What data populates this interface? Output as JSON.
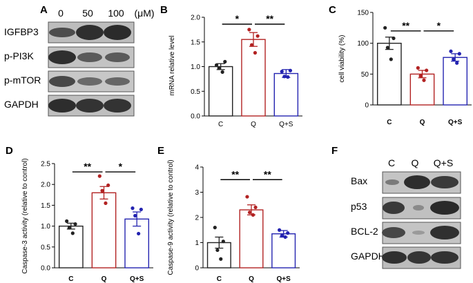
{
  "panel_labels": {
    "a": "A",
    "b": "B",
    "c": "C",
    "d": "D",
    "e": "E",
    "f": "F"
  },
  "western_a": {
    "columns": [
      "0",
      "50",
      "100"
    ],
    "unit": "(μM)",
    "rows": [
      "IGFBP3",
      "p-PI3K",
      "p-mTOR",
      "GAPDH"
    ]
  },
  "western_f": {
    "columns": [
      "C",
      "Q",
      "Q+S"
    ],
    "rows": [
      "Bax",
      "p53",
      "BCL-2",
      "GAPDH"
    ]
  },
  "colors": {
    "C": "#222222",
    "Q": "#b22222",
    "Q+S": "#2323b0"
  },
  "chart_data": [
    {
      "id": "B",
      "type": "bar",
      "categories": [
        "C",
        "Q",
        "Q+S"
      ],
      "values": [
        1.0,
        1.55,
        0.86
      ],
      "errors": [
        0.06,
        0.14,
        0.08
      ],
      "points": [
        [
          1.03,
          1.1,
          0.97,
          0.89
        ],
        [
          1.75,
          1.62,
          1.44,
          1.28
        ],
        [
          0.9,
          0.92,
          0.8,
          0.79
        ]
      ],
      "ylabel": "mRNA relative level",
      "ylim": [
        0,
        2.0
      ],
      "yticks": [
        "0.0",
        "0.5",
        "1.0",
        "1.5",
        "2.0"
      ],
      "significance": [
        {
          "label": "*",
          "from": 0,
          "to": 1,
          "y": 1.86
        },
        {
          "label": "**",
          "from": 1,
          "to": 2,
          "y": 1.86
        }
      ]
    },
    {
      "id": "C",
      "type": "bar",
      "categories": [
        "C",
        "Q",
        "Q+S"
      ],
      "values": [
        100,
        50,
        77
      ],
      "errors": [
        10,
        6,
        6
      ],
      "points": [
        [
          125,
          108,
          93,
          74
        ],
        [
          60,
          56,
          47,
          40
        ],
        [
          87,
          83,
          74,
          68
        ]
      ],
      "ylabel": "cell viability (%)",
      "ylim": [
        0,
        150
      ],
      "yticks": [
        "0",
        "50",
        "100",
        "150"
      ],
      "significance": [
        {
          "label": "**",
          "from": 0,
          "to": 1,
          "y": 120
        },
        {
          "label": "*",
          "from": 1,
          "to": 2,
          "y": 120
        }
      ]
    },
    {
      "id": "D",
      "type": "bar",
      "categories": [
        "C",
        "Q",
        "Q+S"
      ],
      "values": [
        1.0,
        1.8,
        1.17
      ],
      "errors": [
        0.07,
        0.15,
        0.17
      ],
      "points": [
        [
          1.12,
          1.05,
          0.96,
          0.83
        ],
        [
          2.2,
          1.98,
          1.85,
          1.55
        ],
        [
          1.43,
          1.4,
          1.25,
          0.82
        ]
      ],
      "ylabel": "Caspase-3 activity (relative to control)",
      "ylim": [
        0,
        2.5
      ],
      "yticks": [
        "0.0",
        "0.5",
        "1.0",
        "1.5",
        "2.0",
        "2.5"
      ],
      "significance": [
        {
          "label": "**",
          "from": 0,
          "to": 1,
          "y": 2.3
        },
        {
          "label": "*",
          "from": 1,
          "to": 2,
          "y": 2.3
        }
      ]
    },
    {
      "id": "E",
      "type": "bar",
      "categories": [
        "C",
        "Q",
        "Q+S"
      ],
      "values": [
        1.0,
        2.3,
        1.35
      ],
      "errors": [
        0.22,
        0.2,
        0.13
      ],
      "points": [
        [
          1.6,
          1.05,
          0.7,
          0.35
        ],
        [
          2.82,
          2.4,
          2.2,
          2.1
        ],
        [
          1.5,
          1.38,
          1.27,
          1.22
        ]
      ],
      "ylabel": "Caspase-9 activity (relative to control)",
      "ylim": [
        0,
        4
      ],
      "yticks": [
        "0",
        "1",
        "2",
        "3",
        "4"
      ],
      "significance": [
        {
          "label": "**",
          "from": 0,
          "to": 1,
          "y": 3.5
        },
        {
          "label": "**",
          "from": 1,
          "to": 2,
          "y": 3.5
        }
      ]
    }
  ]
}
